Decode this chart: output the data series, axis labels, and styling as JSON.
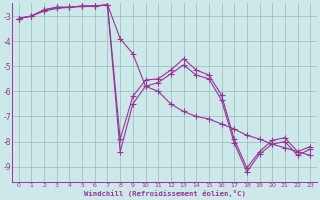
{
  "xlabel": "Windchill (Refroidissement éolien,°C)",
  "background_color": "#cce8e8",
  "line_color": "#993399",
  "grid_color": "#99bbbb",
  "xlim": [
    -0.5,
    23.5
  ],
  "ylim": [
    -9.6,
    -2.5
  ],
  "yticks": [
    -3,
    -4,
    -5,
    -6,
    -7,
    -8,
    -9
  ],
  "xticks": [
    0,
    1,
    2,
    3,
    4,
    5,
    6,
    7,
    8,
    9,
    10,
    11,
    12,
    13,
    14,
    15,
    16,
    17,
    18,
    19,
    20,
    21,
    22,
    23
  ],
  "series1_x": [
    0,
    1,
    2,
    3,
    4,
    5,
    6,
    7,
    8,
    9,
    10,
    11,
    12,
    13,
    14,
    15,
    16,
    17,
    18,
    19,
    20,
    21,
    22,
    23
  ],
  "series1_y": [
    -3.1,
    -3.0,
    -2.75,
    -2.65,
    -2.65,
    -2.6,
    -2.6,
    -2.55,
    -3.9,
    -4.5,
    -5.8,
    -6.0,
    -6.5,
    -6.8,
    -7.0,
    -7.1,
    -7.3,
    -7.5,
    -7.75,
    -7.9,
    -8.1,
    -8.25,
    -8.4,
    -8.55
  ],
  "series2_x": [
    0,
    1,
    2,
    3,
    4,
    5,
    6,
    7,
    8,
    9,
    10,
    11,
    12,
    13,
    14,
    15,
    16,
    17,
    18,
    19,
    20,
    21,
    22,
    23
  ],
  "series2_y": [
    -3.1,
    -3.0,
    -2.8,
    -2.7,
    -2.65,
    -2.62,
    -2.62,
    -2.55,
    -8.4,
    -6.5,
    -5.8,
    -5.65,
    -5.3,
    -4.95,
    -5.35,
    -5.5,
    -6.35,
    -8.05,
    -9.2,
    -8.5,
    -8.1,
    -8.0,
    -8.55,
    -8.3
  ],
  "series3_x": [
    0,
    1,
    2,
    3,
    4,
    5,
    6,
    7,
    8,
    9,
    10,
    11,
    12,
    13,
    14,
    15,
    16,
    17,
    18,
    19,
    20,
    21,
    22,
    23
  ],
  "series3_y": [
    -3.1,
    -3.0,
    -2.75,
    -2.65,
    -2.65,
    -2.6,
    -2.6,
    -2.55,
    -7.9,
    -6.2,
    -5.55,
    -5.5,
    -5.15,
    -4.7,
    -5.15,
    -5.35,
    -6.15,
    -7.9,
    -9.05,
    -8.4,
    -7.95,
    -7.85,
    -8.4,
    -8.2
  ]
}
